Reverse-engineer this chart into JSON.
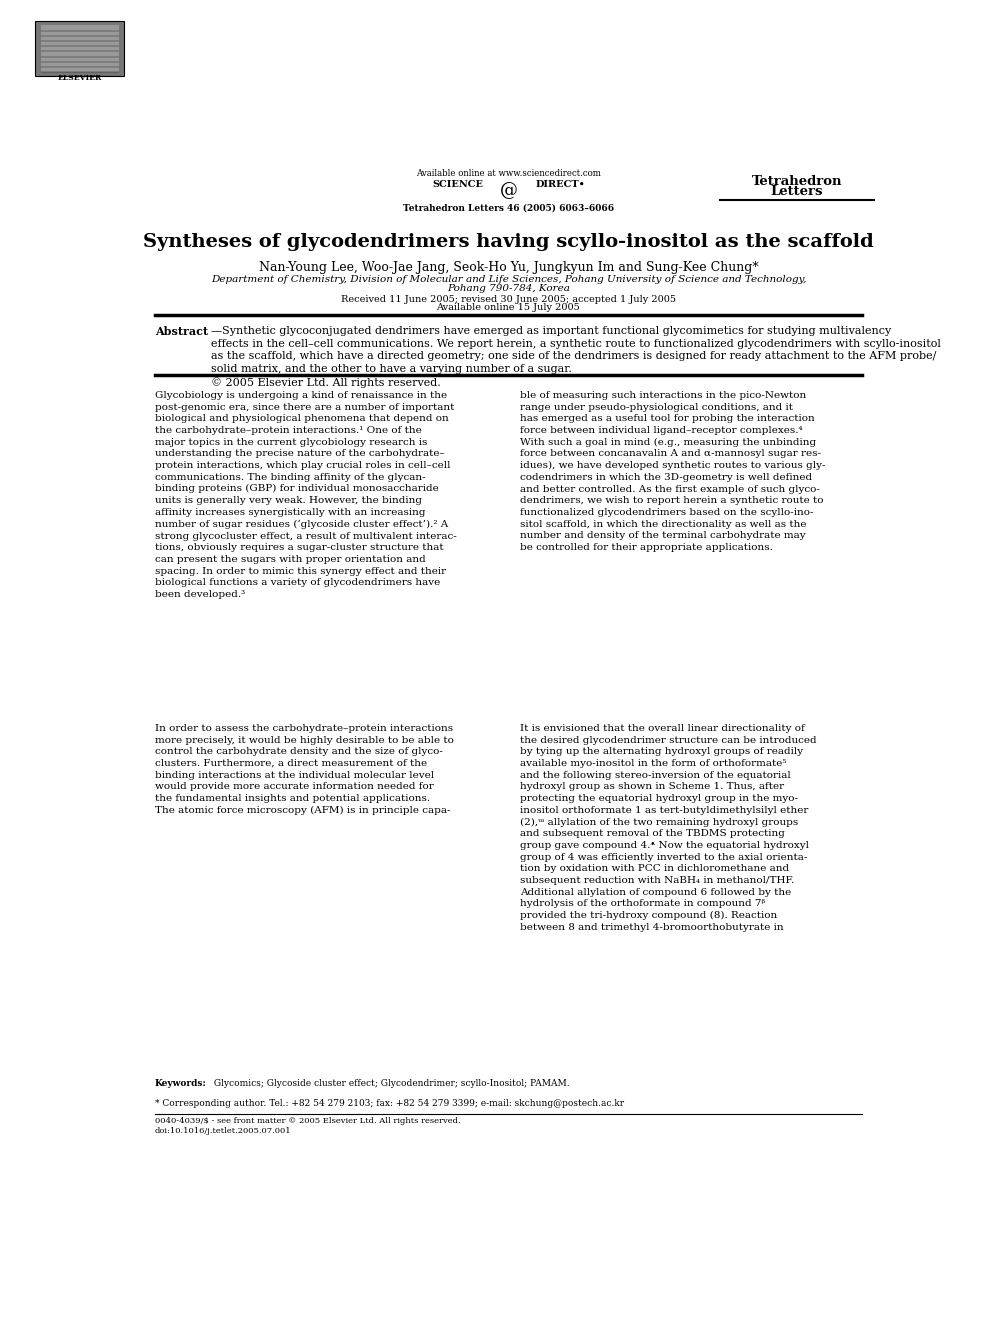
{
  "page_width": 9.92,
  "page_height": 13.23,
  "bg_color": "#ffffff",
  "header_available": "Available online at www.sciencedirect.com",
  "header_journal_cite": "Tetrahedron Letters 46 (2005) 6063–6066",
  "journal_name1": "Tetrahedron",
  "journal_name2": "Letters",
  "elsevier_text": "ELSEVIER",
  "science_left": "SCIENCE",
  "science_right": "DIRECT•",
  "title_part1": "Syntheses of glycodendrimers having ",
  "title_italic": "scyllo",
  "title_part2": "-inositol as the scaffold",
  "authors": "Nan-Young Lee, Woo-Jae Jang, Seok-Ho Yu, Jungkyun Im and Sung-Kee Chung*",
  "affiliation1": "Department of Chemistry, Division of Molecular and Life Sciences, Pohang University of Science and Technology,",
  "affiliation2": "Pohang 790-784, Korea",
  "received": "Received 11 June 2005; revised 30 June 2005; accepted 1 July 2005",
  "available_online": "Available online 15 July 2005",
  "abstract_label": "Abstract",
  "abstract_body": "—Synthetic glycoconjugated dendrimers have emerged as important functional glycomimetics for studying multivalency\neffects in the cell–cell communications. We report herein, a synthetic route to functionalized glycodendrimers with scyllo-inositol\nas the scaffold, which have a directed geometry; one side of the dendrimers is designed for ready attachment to the AFM probe/\nsolid matrix, and the other to have a varying number of a sugar.\n© 2005 Elsevier Ltd. All rights reserved.",
  "keywords_label": "Keywords:",
  "keywords_body": " Glycomics; Glycoside cluster effect; Glycodendrimer; scyllo-Inositol; PAMAM.",
  "footnote_star": "* Corresponding author. Tel.: +82 54 279 2103; fax: +82 54 279 3399; e-mail: skchung@postech.ac.kr",
  "footnote_bottom1": "0040-4039/$ - see front matter © 2005 Elsevier Ltd. All rights reserved.",
  "footnote_bottom2": "doi:10.1016/j.tetlet.2005.07.001",
  "col1_p1": "Glycobiology is undergoing a kind of renaissance in the\npost-genomic era, since there are a number of important\nbiological and physiological phenomena that depend on\nthe carbohydrate–protein interactions.¹ One of the\nmajor topics in the current glycobiology research is\nunderstanding the precise nature of the carbohydrate–\nprotein interactions, which play crucial roles in cell–cell\ncommunications. The binding affinity of the glycan-\nbinding proteins (GBP) for individual monosaccharide\nunits is generally very weak. However, the binding\naffinity increases synergistically with an increasing\nnumber of sugar residues (‘glycoside cluster effect’).² A\nstrong glycocluster effect, a result of multivalent interac-\ntions, obviously requires a sugar-cluster structure that\ncan present the sugars with proper orientation and\nspacing. In order to mimic this synergy effect and their\nbiological functions a variety of glycodendrimers have\nbeen developed.³",
  "col1_p2": "In order to assess the carbohydrate–protein interactions\nmore precisely, it would be highly desirable to be able to\ncontrol the carbohydrate density and the size of glyco-\nclusters. Furthermore, a direct measurement of the\nbinding interactions at the individual molecular level\nwould provide more accurate information needed for\nthe fundamental insights and potential applications.\nThe atomic force microscopy (AFM) is in principle capa-",
  "col2_p1": "ble of measuring such interactions in the pico-Newton\nrange under pseudo-physiological conditions, and it\nhas emerged as a useful tool for probing the interaction\nforce between individual ligand–receptor complexes.⁴\nWith such a goal in mind (e.g., measuring the unbinding\nforce between concanavalin A and α-mannosyl sugar res-\nidues), we have developed synthetic routes to various gly-\ncodendrimers in which the 3D-geometry is well defined\nand better controlled. As the first example of such glyco-\ndendrimers, we wish to report herein a synthetic route to\nfunctionalized glycodendrimers based on the scyllo-ino-\nsitol scaffold, in which the directionality as well as the\nnumber and density of the terminal carbohydrate may\nbe controlled for their appropriate applications.",
  "col2_p2": "It is envisioned that the overall linear directionality of\nthe desired glycodendrimer structure can be introduced\nby tying up the alternating hydroxyl groups of readily\navailable myo-inositol in the form of orthoformate⁵\nand the following stereo-inversion of the equatorial\nhydroxyl group as shown in Scheme 1. Thus, after\nprotecting the equatorial hydroxyl group in the myo-\ninositol orthoformate 1 as tert-butyldimethylsilyl ether\n(2),ᵚ allylation of the two remaining hydroxyl groups\nand subsequent removal of the TBDMS protecting\ngroup gave compound 4.ᵜ Now the equatorial hydroxyl\ngroup of 4 was efficiently inverted to the axial orienta-\ntion by oxidation with PCC in dichloromethane and\nsubsequent reduction with NaBH₄ in methanol/THF.\nAdditional allylation of compound 6 followed by the\nhydrolysis of the orthoformate in compound 7ᵝ\nprovided the tri-hydroxy compound (8). Reaction\nbetween 8 and trimethyl 4-bromoorthobutyrate in"
}
